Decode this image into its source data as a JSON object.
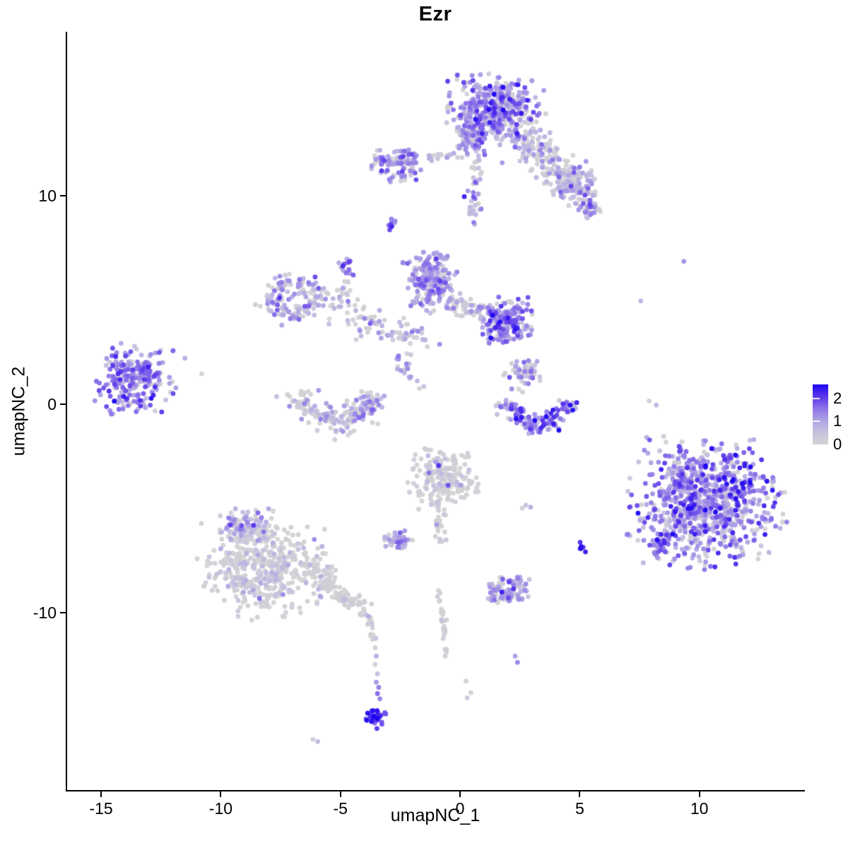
{
  "title": "Ezr",
  "axes": {
    "x_label": "umapNC_1",
    "y_label": "umapNC_2",
    "x_ticks": [
      -15,
      -10,
      -5,
      0,
      5,
      10
    ],
    "y_ticks": [
      -10,
      0,
      10
    ]
  },
  "legend": {
    "labels": [
      "2",
      "1",
      "0"
    ],
    "values": [
      2,
      1,
      0
    ],
    "gradient_top": "#1c05f2",
    "gradient_mid": "#a392e2",
    "gradient_bottom": "#d3d3d3"
  },
  "colors": {
    "low": "#d3d3d3",
    "high": "#1c05f2",
    "axis": "#000000",
    "background": "#ffffff",
    "ramp_stops": [
      [
        0.0,
        211,
        211,
        211
      ],
      [
        0.2,
        199,
        194,
        222
      ],
      [
        0.4,
        175,
        163,
        228
      ],
      [
        0.6,
        140,
        115,
        232
      ],
      [
        0.8,
        92,
        55,
        235
      ],
      [
        1.0,
        28,
        5,
        242
      ]
    ]
  },
  "chart_data": {
    "type": "scatter",
    "title": "Ezr",
    "xlabel": "umapNC_1",
    "ylabel": "umapNC_2",
    "xlim": [
      -16.42,
      14.35
    ],
    "ylim": [
      -18.53,
      17.87
    ],
    "grid": false,
    "legend_position": "right",
    "color_scale": {
      "label_values": [
        0,
        1,
        2
      ],
      "min": 0,
      "max": 2.6,
      "low": "lightgrey",
      "high": "blue"
    },
    "point_radius_px": 3.4,
    "clusters": [
      {
        "id": "top-main-blob",
        "type": "blob",
        "cx": 1.55,
        "cy": 14.15,
        "rx": 1.8,
        "ry": 1.55,
        "n": 430,
        "e": 1.15,
        "sd": 0.55,
        "gray": 0.22
      },
      {
        "id": "top-main-left",
        "type": "blob",
        "cx": 0.5,
        "cy": 12.7,
        "rx": 0.75,
        "ry": 0.75,
        "n": 80,
        "e": 1.0,
        "sd": 0.5,
        "gray": 0.3
      },
      {
        "id": "top-arm",
        "type": "band",
        "x1": 2.5,
        "y1": 12.9,
        "x2": 5.4,
        "y2": 9.8,
        "w": 0.8,
        "n": 230,
        "e": 0.75,
        "sd": 0.5,
        "gray": 0.38
      },
      {
        "id": "top-arm-gray-patch",
        "type": "blob",
        "cx": 4.7,
        "cy": 10.7,
        "rx": 0.85,
        "ry": 0.65,
        "n": 60,
        "e": 0.5,
        "sd": 0.4,
        "gray": 0.5
      },
      {
        "id": "top-arm-tip",
        "type": "blob",
        "cx": 5.35,
        "cy": 9.4,
        "rx": 0.55,
        "ry": 0.45,
        "n": 35,
        "e": 1.0,
        "sd": 0.5,
        "gray": 0.25
      },
      {
        "id": "top-neck",
        "type": "band",
        "x1": 0.75,
        "y1": 11.8,
        "x2": 0.55,
        "y2": 8.6,
        "w": 0.3,
        "n": 40,
        "e": 0.85,
        "sd": 0.5,
        "gray": 0.3
      },
      {
        "id": "nw-small-cluster",
        "type": "blob",
        "cx": -2.5,
        "cy": 11.6,
        "rx": 1.05,
        "ry": 0.8,
        "n": 105,
        "e": 1.15,
        "sd": 0.5,
        "gray": 0.18
      },
      {
        "id": "nw-bridge",
        "type": "band",
        "x1": -1.3,
        "y1": 11.85,
        "x2": 0.2,
        "y2": 12.0,
        "w": 0.3,
        "n": 20,
        "e": 0.7,
        "sd": 0.4,
        "gray": 0.45
      },
      {
        "id": "nw-satellite",
        "type": "points",
        "pts": [
          [
            -3.7,
            11.3,
            0.8
          ]
        ]
      },
      {
        "id": "tiny-pair-high",
        "type": "blob",
        "cx": -2.9,
        "cy": 8.6,
        "rx": 0.28,
        "ry": 0.33,
        "n": 9,
        "e": 1.7,
        "sd": 0.4,
        "gray": 0.05
      },
      {
        "id": "small-upper-mid",
        "type": "blob",
        "cx": -4.75,
        "cy": 6.6,
        "rx": 0.3,
        "ry": 0.45,
        "n": 14,
        "e": 1.35,
        "sd": 0.5,
        "gray": 0.1
      },
      {
        "id": "small-upper-trail",
        "type": "band",
        "x1": -4.85,
        "y1": 6.0,
        "x2": -4.6,
        "y2": 4.6,
        "w": 0.25,
        "n": 10,
        "e": 0.7,
        "sd": 0.5,
        "gray": 0.4
      },
      {
        "id": "ring-left",
        "type": "arc",
        "cx": -7.05,
        "cy": 5.1,
        "r": 0.85,
        "a1": 0,
        "a2": 360,
        "w": 0.55,
        "n": 135,
        "e": 0.95,
        "sd": 0.55,
        "gray": 0.3
      },
      {
        "id": "ring-arc-bridge",
        "type": "band",
        "x1": -6.0,
        "y1": 5.6,
        "x2": -3.6,
        "y2": 3.6,
        "w": 0.7,
        "n": 55,
        "e": 0.6,
        "sd": 0.5,
        "gray": 0.45
      },
      {
        "id": "center-left-blob",
        "type": "blob",
        "cx": -1.25,
        "cy": 5.9,
        "rx": 1.0,
        "ry": 1.3,
        "n": 215,
        "e": 1.0,
        "sd": 0.5,
        "gray": 0.17
      },
      {
        "id": "center-right-blob",
        "type": "blob",
        "cx": 1.9,
        "cy": 3.95,
        "rx": 0.95,
        "ry": 1.0,
        "n": 195,
        "e": 1.3,
        "sd": 0.55,
        "gray": 0.13
      },
      {
        "id": "center-bridge",
        "type": "band",
        "x1": -0.55,
        "y1": 4.9,
        "x2": 1.05,
        "y2": 4.35,
        "w": 0.45,
        "n": 60,
        "e": 0.75,
        "sd": 0.5,
        "gray": 0.38
      },
      {
        "id": "center-sparse-below",
        "type": "blob",
        "cx": -2.1,
        "cy": 3.4,
        "rx": 1.25,
        "ry": 0.95,
        "n": 45,
        "e": 0.75,
        "sd": 0.5,
        "gray": 0.4
      },
      {
        "id": "center-chain-down",
        "type": "band",
        "x1": -2.65,
        "y1": 2.2,
        "x2": -1.6,
        "y2": 0.7,
        "w": 0.22,
        "n": 20,
        "e": 1.05,
        "sd": 0.5,
        "gray": 0.2
      },
      {
        "id": "far-left-cluster",
        "type": "blob",
        "cx": -13.6,
        "cy": 1.2,
        "rx": 1.45,
        "ry": 1.5,
        "n": 235,
        "e": 1.3,
        "sd": 0.5,
        "gray": 0.08
      },
      {
        "id": "far-left-satellites",
        "type": "points",
        "pts": [
          [
            -12.0,
            2.55,
            1.2
          ],
          [
            -11.5,
            2.2,
            0.9
          ],
          [
            -10.8,
            1.45,
            0.05
          ],
          [
            -12.3,
            0.2,
            0.6
          ]
        ]
      },
      {
        "id": "left-crescent",
        "type": "arc",
        "cx": -5.15,
        "cy": 0.75,
        "r": 1.55,
        "a1": 185,
        "a2": 355,
        "w": 0.6,
        "n": 165,
        "e": 0.6,
        "sd": 0.5,
        "gray": 0.5
      },
      {
        "id": "left-crescent-rim",
        "type": "arc",
        "cx": -5.15,
        "cy": 0.75,
        "r": 1.6,
        "a1": 300,
        "a2": 350,
        "w": 0.4,
        "n": 30,
        "e": 1.1,
        "sd": 0.4,
        "gray": 0.15
      },
      {
        "id": "right-funnel",
        "type": "blob",
        "cx": 2.7,
        "cy": 1.5,
        "rx": 0.8,
        "ry": 0.8,
        "n": 55,
        "e": 0.95,
        "sd": 0.5,
        "gray": 0.28
      },
      {
        "id": "right-crescent",
        "type": "arc",
        "cx": 3.3,
        "cy": 0.55,
        "r": 1.5,
        "a1": 195,
        "a2": 345,
        "w": 0.5,
        "n": 125,
        "e": 1.4,
        "sd": 0.55,
        "gray": 0.1
      },
      {
        "id": "right-crescent-deep",
        "type": "points",
        "pts": [
          [
            3.6,
            -0.6,
            2.6
          ],
          [
            3.8,
            -0.45,
            2.3
          ],
          [
            3.45,
            -0.8,
            2.1
          ],
          [
            4.1,
            -0.3,
            2.0
          ]
        ]
      },
      {
        "id": "right-singles",
        "type": "points",
        "pts": [
          [
            9.35,
            6.85,
            1.3
          ],
          [
            7.55,
            4.95,
            0.8
          ],
          [
            7.9,
            0.15,
            0.1
          ],
          [
            8.2,
            -0.05,
            0.7
          ],
          [
            7.8,
            -1.6,
            0.9
          ]
        ]
      },
      {
        "id": "mid-low-gray",
        "type": "blob",
        "cx": -0.7,
        "cy": -3.55,
        "rx": 1.25,
        "ry": 1.35,
        "n": 195,
        "e": 0.3,
        "sd": 0.3,
        "gray": 0.7
      },
      {
        "id": "mid-low-deep-dots",
        "type": "points",
        "pts": [
          [
            -0.9,
            -2.95,
            2.2
          ],
          [
            -0.5,
            -3.9,
            1.9
          ],
          [
            -1.3,
            -3.3,
            1.6
          ]
        ]
      },
      {
        "id": "mid-low-tail",
        "type": "band",
        "x1": -0.7,
        "y1": -5.0,
        "x2": -0.9,
        "y2": -6.6,
        "w": 0.25,
        "n": 18,
        "e": 0.3,
        "sd": 0.3,
        "gray": 0.7
      },
      {
        "id": "small-mid-pair",
        "type": "blob",
        "cx": -2.6,
        "cy": -6.6,
        "rx": 0.6,
        "ry": 0.45,
        "n": 45,
        "e": 0.9,
        "sd": 0.5,
        "gray": 0.3
      },
      {
        "id": "mid-dots",
        "type": "points",
        "pts": [
          [
            2.75,
            -4.85,
            0.5
          ],
          [
            2.95,
            -4.95,
            0.9
          ],
          [
            2.6,
            -5.0,
            0.1
          ]
        ]
      },
      {
        "id": "big-right-cluster",
        "type": "blob",
        "cx": 10.3,
        "cy": -4.75,
        "rx": 2.85,
        "ry": 2.75,
        "n": 880,
        "e": 1.25,
        "sd": 0.6,
        "gray": 0.14
      },
      {
        "id": "big-right-tip",
        "type": "band",
        "x1": 8.7,
        "y1": -6.2,
        "x2": 8.2,
        "y2": -7.3,
        "w": 0.4,
        "n": 40,
        "e": 1.5,
        "sd": 0.5,
        "gray": 0.1
      },
      {
        "id": "tiny-blue-pair",
        "type": "blob",
        "cx": 5.05,
        "cy": -6.95,
        "rx": 0.16,
        "ry": 0.3,
        "n": 7,
        "e": 2.3,
        "sd": 0.25,
        "gray": 0
      },
      {
        "id": "bottom-left-cluster",
        "type": "blob",
        "cx": -8.35,
        "cy": -7.75,
        "rx": 2.35,
        "ry": 2.25,
        "n": 470,
        "e": 0.45,
        "sd": 0.4,
        "gray": 0.6
      },
      {
        "id": "bottom-left-cap",
        "type": "blob",
        "cx": -8.75,
        "cy": -5.9,
        "rx": 1.25,
        "ry": 0.75,
        "n": 85,
        "e": 0.8,
        "sd": 0.45,
        "gray": 0.3
      },
      {
        "id": "bottom-left-edge",
        "type": "band",
        "x1": -6.4,
        "y1": -7.6,
        "x2": -5.3,
        "y2": -8.9,
        "w": 0.55,
        "n": 70,
        "e": 0.2,
        "sd": 0.25,
        "gray": 0.78
      },
      {
        "id": "bl-tail",
        "type": "band",
        "x1": -5.2,
        "y1": -9.0,
        "x2": -3.9,
        "y2": -9.9,
        "w": 0.35,
        "n": 55,
        "e": 0.2,
        "sd": 0.25,
        "gray": 0.8
      },
      {
        "id": "bl-hook",
        "type": "band",
        "x1": -3.8,
        "y1": -10.1,
        "x2": -3.6,
        "y2": -11.3,
        "w": 0.2,
        "n": 18,
        "e": 0.25,
        "sd": 0.3,
        "gray": 0.75
      },
      {
        "id": "drip-chain",
        "type": "points",
        "pts": [
          [
            -3.55,
            -11.7,
            0.1
          ],
          [
            -3.5,
            -12.1,
            0.9
          ],
          [
            -3.55,
            -12.5,
            0.15
          ],
          [
            -3.45,
            -12.95,
            0.6
          ],
          [
            -3.5,
            -13.35,
            1.2
          ],
          [
            -3.4,
            -13.6,
            1.5
          ],
          [
            -3.45,
            -13.9,
            1.7
          ],
          [
            -3.35,
            -14.15,
            1.4
          ]
        ]
      },
      {
        "id": "drip-blue-blob",
        "type": "blob",
        "cx": -3.55,
        "cy": -15.0,
        "rx": 0.38,
        "ry": 0.5,
        "n": 32,
        "e": 2.2,
        "sd": 0.35,
        "gray": 0
      },
      {
        "id": "lone-bottom-pair",
        "type": "points",
        "pts": [
          [
            -6.15,
            -16.1,
            0.2
          ],
          [
            -5.95,
            -16.2,
            0.7
          ]
        ]
      },
      {
        "id": "bottom-mid-cluster",
        "type": "blob",
        "cx": 1.9,
        "cy": -8.95,
        "rx": 0.85,
        "ry": 0.6,
        "n": 90,
        "e": 1.0,
        "sd": 0.5,
        "gray": 0.22
      },
      {
        "id": "bottom-trail",
        "type": "band",
        "x1": -0.85,
        "y1": -8.9,
        "x2": -0.55,
        "y2": -12.0,
        "w": 0.18,
        "n": 26,
        "e": 0.2,
        "sd": 0.25,
        "gray": 0.8
      },
      {
        "id": "bottom-trail-dots",
        "type": "points",
        "pts": [
          [
            0.25,
            -13.3,
            0.1
          ],
          [
            0.45,
            -13.85,
            0.15
          ],
          [
            0.3,
            -14.1,
            0.4
          ]
        ]
      },
      {
        "id": "pair-deep-bottom",
        "type": "points",
        "pts": [
          [
            2.3,
            -12.1,
            1.1
          ],
          [
            2.4,
            -12.4,
            1.4
          ]
        ]
      }
    ]
  }
}
